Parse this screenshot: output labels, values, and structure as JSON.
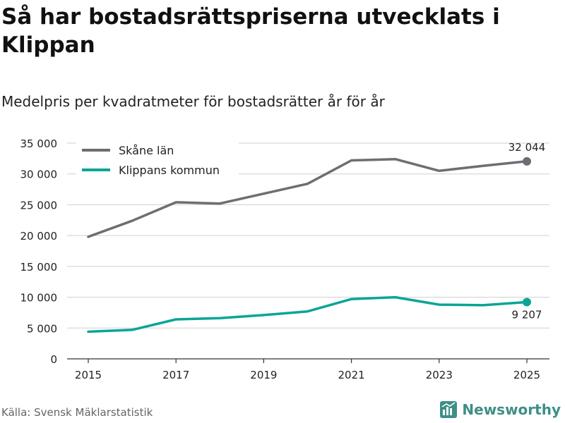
{
  "header": {
    "title": "Så har bostadsrättspriserna utvecklats i Klippan",
    "subtitle": "Medelpris per kvadratmeter för bostadsrätter år för år"
  },
  "footer": {
    "source": "Källa: Svensk Mäklarstatistik",
    "brand": "Newsworthy",
    "brand_color": "#3d8f87"
  },
  "chart_data": {
    "type": "line",
    "x": [
      2015,
      2016,
      2017,
      2018,
      2019,
      2020,
      2021,
      2022,
      2023,
      2024,
      2025
    ],
    "series": [
      {
        "name": "Skåne län",
        "color": "#6e6d73",
        "values": [
          19800,
          22400,
          25400,
          25200,
          26800,
          28400,
          32200,
          32400,
          30500,
          31300,
          32044
        ],
        "end_label": "32 044"
      },
      {
        "name": "Klippans kommun",
        "color": "#0aa597",
        "values": [
          4400,
          4700,
          6400,
          6600,
          7100,
          7700,
          9700,
          10000,
          8800,
          8700,
          9207
        ],
        "end_label": "9 207"
      }
    ],
    "ylim": [
      0,
      35000
    ],
    "yticks": [
      0,
      5000,
      10000,
      15000,
      20000,
      25000,
      30000,
      35000
    ],
    "ytick_labels": [
      "0",
      "5 000",
      "10 000",
      "15 000",
      "20 000",
      "25 000",
      "30 000",
      "35 000"
    ],
    "xticks": [
      2015,
      2017,
      2019,
      2021,
      2023,
      2025
    ],
    "xtick_labels": [
      "2015",
      "2017",
      "2019",
      "2021",
      "2023",
      "2025"
    ],
    "grid": true,
    "legend_position": "top-left"
  }
}
